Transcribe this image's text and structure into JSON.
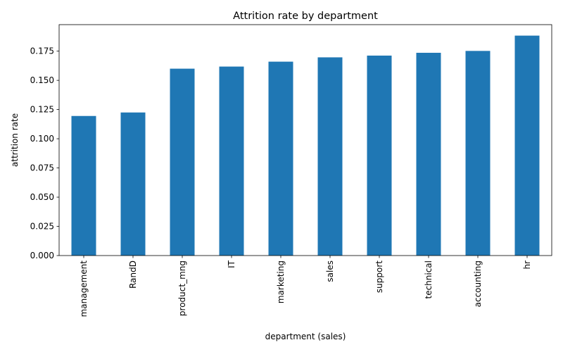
{
  "chart_data": {
    "type": "bar",
    "title": "Attrition rate by department",
    "xlabel": "department (sales)",
    "ylabel": "attrition rate",
    "categories": [
      "management",
      "RandD",
      "product_mng",
      "IT",
      "marketing",
      "sales",
      "support",
      "technical",
      "accounting",
      "hr"
    ],
    "values": [
      0.1195,
      0.1225,
      0.16,
      0.1618,
      0.166,
      0.1697,
      0.1712,
      0.1736,
      0.1752,
      0.1883
    ],
    "ylim": [
      0,
      0.1977
    ],
    "yticks": [
      "0.000",
      "0.025",
      "0.050",
      "0.075",
      "0.100",
      "0.125",
      "0.150",
      "0.175"
    ],
    "grid": false,
    "legend": "none",
    "bar_color": "#1f77b4"
  }
}
